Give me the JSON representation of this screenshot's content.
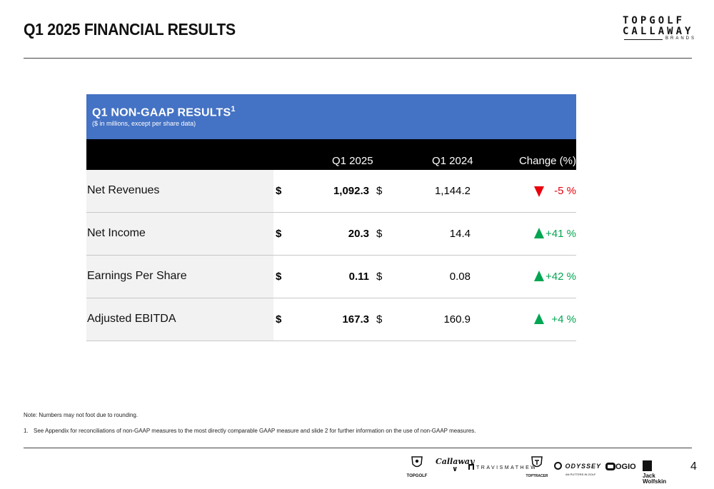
{
  "page": {
    "title": "Q1 2025 FINANCIAL RESULTS",
    "page_number": "4"
  },
  "logo": {
    "line1": "TOPGOLF",
    "line2": "CALLAWAY",
    "line3": "BRANDS"
  },
  "table": {
    "title": "Q1 NON-GAAP RESULTS",
    "title_superscript": "1",
    "subtitle": "($ in millions, except per share data)",
    "columns": [
      "Q1 2025",
      "Q1 2024",
      "Change (%)"
    ],
    "currency_symbol_bold": "$",
    "currency_symbol": "$",
    "rows": [
      {
        "label": "Net Revenues",
        "q1_2025": "1,092.3",
        "q1_2024": "1,144.2",
        "change": "-5 %",
        "direction": "down"
      },
      {
        "label": "Net Income",
        "q1_2025": "20.3",
        "q1_2024": "14.4",
        "change": "+41 %",
        "direction": "up"
      },
      {
        "label": "Earnings Per Share",
        "q1_2025": "0.11",
        "q1_2024": "0.08",
        "change": "+42 %",
        "direction": "up"
      },
      {
        "label": "Adjusted EBITDA",
        "q1_2025": "167.3",
        "q1_2024": "160.9",
        "change": "+4 %",
        "direction": "up"
      }
    ],
    "colors": {
      "header_bg": "#4472c4",
      "column_header_bg": "#000000",
      "label_bg": "#f2f2f2",
      "negative": "#e8000d",
      "positive": "#00a651"
    }
  },
  "notes": {
    "note": "Note: Numbers may not foot due to rounding.",
    "footnote_number": "1.",
    "footnote_text": "See Appendix for reconciliations of non-GAAP measures to the most directly comparable GAAP measure and slide 2 for further information on the use of non-GAAP measures."
  },
  "brands": {
    "topgolf": "TOPGOLF",
    "callaway": "Callaway",
    "travismathew": "TRAVISMATHEW",
    "toptracer": "TOPTRACER",
    "odyssey": "ODYSSEY",
    "odyssey_sub": "AN PUTTERS IN GOLF",
    "ogio": "OGIO",
    "jack_line1": "Jack",
    "jack_line2": "Wolfskin"
  }
}
